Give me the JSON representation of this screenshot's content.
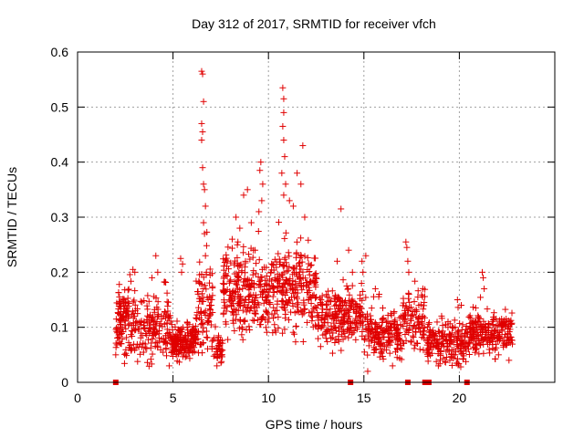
{
  "chart_data": {
    "type": "scatter",
    "title": "Day 312 of 2017, SRMTID for receiver vfch",
    "xlabel": "GPS time / hours",
    "ylabel": "SRMTID / TECUs",
    "xlim": [
      0,
      25
    ],
    "ylim": [
      0,
      0.6
    ],
    "xticks": [
      0,
      5,
      10,
      15,
      20
    ],
    "xtick_labels": [
      "0",
      "5",
      "10",
      "15",
      "20"
    ],
    "yticks": [
      0,
      0.1,
      0.2,
      0.3,
      0.4,
      0.5,
      0.6
    ],
    "ytick_labels": [
      "0",
      "0.1",
      "0.2",
      "0.3",
      "0.4",
      "0.5",
      "0.6"
    ],
    "grid": true,
    "marker": "plus",
    "color": "#e00000",
    "zero_markers_x": [
      2.0,
      14.3,
      17.3,
      18.2,
      18.4,
      20.4
    ],
    "series": [
      {
        "name": "SRMTID",
        "segments": [
          {
            "x0": 2.0,
            "x1": 4.9,
            "base": 0.1,
            "spread": 0.055,
            "n": 240
          },
          {
            "x0": 2.1,
            "x1": 2.7,
            "base": 0.13,
            "spread": 0.03,
            "n": 40
          },
          {
            "x0": 4.9,
            "x1": 6.2,
            "base": 0.075,
            "spread": 0.03,
            "n": 170
          },
          {
            "x0": 6.2,
            "x1": 7.1,
            "base": 0.13,
            "spread": 0.09,
            "n": 90
          },
          {
            "x0": 7.1,
            "x1": 7.6,
            "base": 0.06,
            "spread": 0.03,
            "n": 40
          },
          {
            "x0": 7.6,
            "x1": 10.5,
            "base": 0.16,
            "spread": 0.07,
            "n": 300
          },
          {
            "x0": 10.5,
            "x1": 12.5,
            "base": 0.17,
            "spread": 0.07,
            "n": 200
          },
          {
            "x0": 12.5,
            "x1": 15.0,
            "base": 0.12,
            "spread": 0.045,
            "n": 230
          },
          {
            "x0": 15.0,
            "x1": 17.0,
            "base": 0.09,
            "spread": 0.04,
            "n": 190
          },
          {
            "x0": 17.0,
            "x1": 18.2,
            "base": 0.11,
            "spread": 0.05,
            "n": 100
          },
          {
            "x0": 18.3,
            "x1": 20.5,
            "base": 0.07,
            "spread": 0.035,
            "n": 200
          },
          {
            "x0": 20.5,
            "x1": 22.8,
            "base": 0.09,
            "spread": 0.035,
            "n": 220
          }
        ],
        "points": [
          [
            6.5,
            0.565
          ],
          [
            6.55,
            0.56
          ],
          [
            6.6,
            0.51
          ],
          [
            6.5,
            0.47
          ],
          [
            6.55,
            0.455
          ],
          [
            6.5,
            0.44
          ],
          [
            6.55,
            0.39
          ],
          [
            6.6,
            0.36
          ],
          [
            6.65,
            0.35
          ],
          [
            6.7,
            0.32
          ],
          [
            6.6,
            0.29
          ],
          [
            6.65,
            0.27
          ],
          [
            6.7,
            0.23
          ],
          [
            6.75,
            0.2
          ],
          [
            10.75,
            0.535
          ],
          [
            10.8,
            0.515
          ],
          [
            10.8,
            0.49
          ],
          [
            10.75,
            0.465
          ],
          [
            10.8,
            0.44
          ],
          [
            10.85,
            0.41
          ],
          [
            10.7,
            0.38
          ],
          [
            10.9,
            0.36
          ],
          [
            10.8,
            0.34
          ],
          [
            11.1,
            0.33
          ],
          [
            11.3,
            0.32
          ],
          [
            11.5,
            0.38
          ],
          [
            11.7,
            0.36
          ],
          [
            11.8,
            0.43
          ],
          [
            11.9,
            0.3
          ],
          [
            9.6,
            0.4
          ],
          [
            9.55,
            0.385
          ],
          [
            9.7,
            0.36
          ],
          [
            9.65,
            0.33
          ],
          [
            9.5,
            0.31
          ],
          [
            8.3,
            0.3
          ],
          [
            8.5,
            0.28
          ],
          [
            8.7,
            0.34
          ],
          [
            8.9,
            0.35
          ],
          [
            8.1,
            0.26
          ],
          [
            8.4,
            0.255
          ],
          [
            9.1,
            0.29
          ],
          [
            9.3,
            0.24
          ],
          [
            13.8,
            0.315
          ],
          [
            14.2,
            0.24
          ],
          [
            13.6,
            0.22
          ],
          [
            14.4,
            0.2
          ],
          [
            17.2,
            0.255
          ],
          [
            17.25,
            0.245
          ],
          [
            17.3,
            0.22
          ],
          [
            17.35,
            0.2
          ],
          [
            15.1,
            0.23
          ],
          [
            14.9,
            0.22
          ],
          [
            14.95,
            0.2
          ],
          [
            15.6,
            0.17
          ],
          [
            15.8,
            0.16
          ],
          [
            4.1,
            0.23
          ],
          [
            4.2,
            0.2
          ],
          [
            3.9,
            0.19
          ],
          [
            2.9,
            0.205
          ],
          [
            3.0,
            0.2
          ],
          [
            5.4,
            0.225
          ],
          [
            5.5,
            0.215
          ],
          [
            5.45,
            0.2
          ],
          [
            21.2,
            0.2
          ],
          [
            21.25,
            0.19
          ],
          [
            21.3,
            0.17
          ],
          [
            19.9,
            0.15
          ],
          [
            20.1,
            0.14
          ],
          [
            2.0,
            0.05
          ],
          [
            4.8,
            0.03
          ],
          [
            7.3,
            0.03
          ],
          [
            15.2,
            0.02
          ],
          [
            16.5,
            0.03
          ],
          [
            18.9,
            0.03
          ],
          [
            19.5,
            0.04
          ],
          [
            22.6,
            0.04
          ]
        ]
      }
    ]
  }
}
